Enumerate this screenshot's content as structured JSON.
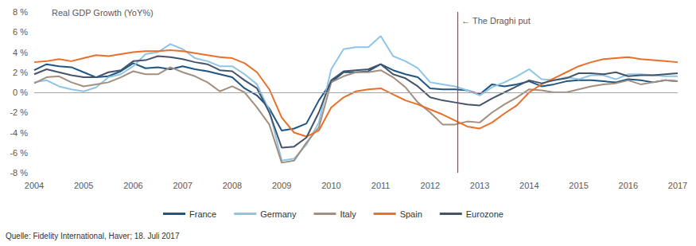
{
  "chart_data": {
    "type": "line",
    "title": "Real GDP Growth (YoY%)",
    "source": "Quelle: Fidelity International, Haver; 18. Juli 2017",
    "x": [
      2004,
      2004.25,
      2004.5,
      2004.75,
      2005,
      2005.25,
      2005.5,
      2005.75,
      2006,
      2006.25,
      2006.5,
      2006.75,
      2007,
      2007.25,
      2007.5,
      2007.75,
      2008,
      2008.25,
      2008.5,
      2008.75,
      2009,
      2009.25,
      2009.5,
      2009.75,
      2010,
      2010.25,
      2010.5,
      2010.75,
      2011,
      2011.25,
      2011.5,
      2011.75,
      2012,
      2012.25,
      2012.5,
      2012.75,
      2013,
      2013.25,
      2013.5,
      2013.75,
      2014,
      2014.25,
      2014.5,
      2014.75,
      2015,
      2015.25,
      2015.5,
      2015.75,
      2016,
      2016.25,
      2016.5,
      2016.75,
      2017
    ],
    "xlim": [
      2004,
      2017
    ],
    "xticks": [
      2004,
      2005,
      2006,
      2007,
      2008,
      2009,
      2010,
      2011,
      2012,
      2013,
      2014,
      2015,
      2016,
      2017
    ],
    "ylim": [
      -8,
      8
    ],
    "yticks": [
      {
        "value": -8,
        "label": "-8 %"
      },
      {
        "value": -6,
        "label": "-6 %"
      },
      {
        "value": -4,
        "label": "-4 %"
      },
      {
        "value": -2,
        "label": "-2 %"
      },
      {
        "value": 0,
        "label": "0 %"
      },
      {
        "value": 2,
        "label": "2 %"
      },
      {
        "value": 4,
        "label": "4 %"
      },
      {
        "value": 6,
        "label": "6 %"
      },
      {
        "value": 8,
        "label": "8 %"
      }
    ],
    "grid": false,
    "legend": "bottom",
    "annotations": [
      {
        "x": 2012.55,
        "text": "← The Draghi put"
      }
    ],
    "series": [
      {
        "name": "France",
        "color": "#1f5582",
        "values": [
          2.2,
          2.8,
          2.6,
          2.5,
          2.0,
          1.5,
          1.6,
          2.1,
          2.9,
          2.4,
          2.5,
          2.3,
          2.6,
          2.3,
          2.1,
          1.8,
          1.5,
          0.4,
          -0.3,
          -1.6,
          -3.8,
          -3.6,
          -3.1,
          -0.8,
          1.0,
          2.0,
          2.0,
          2.1,
          2.8,
          2.2,
          1.8,
          1.5,
          0.4,
          0.3,
          0.3,
          0.2,
          -0.2,
          0.8,
          0.6,
          0.8,
          1.1,
          0.6,
          0.8,
          1.1,
          1.2,
          1.2,
          1.1,
          1.0,
          1.3,
          1.2,
          1.0,
          1.2,
          1.1
        ]
      },
      {
        "name": "Germany",
        "color": "#8ec5e6",
        "values": [
          1.0,
          1.2,
          0.6,
          0.3,
          0.1,
          0.5,
          1.5,
          1.8,
          2.6,
          3.8,
          4.0,
          4.8,
          4.3,
          3.4,
          3.1,
          2.6,
          2.6,
          1.8,
          0.8,
          -1.8,
          -6.8,
          -6.6,
          -5.2,
          -3.0,
          2.3,
          4.3,
          4.5,
          4.5,
          5.6,
          3.6,
          3.1,
          2.4,
          1.0,
          0.8,
          0.6,
          0.2,
          -0.3,
          0.5,
          1.0,
          1.6,
          2.3,
          1.3,
          1.2,
          1.5,
          1.3,
          1.7,
          1.7,
          1.3,
          1.8,
          1.8,
          1.7,
          1.6,
          1.6
        ]
      },
      {
        "name": "Italy",
        "color": "#a38f7f",
        "values": [
          0.9,
          1.5,
          1.6,
          1.0,
          0.6,
          0.8,
          1.0,
          1.5,
          2.1,
          1.8,
          1.8,
          2.5,
          2.0,
          1.6,
          1.0,
          0.1,
          0.6,
          0.0,
          -1.5,
          -3.2,
          -7.0,
          -6.8,
          -5.0,
          -3.5,
          1.0,
          1.6,
          2.0,
          2.0,
          2.2,
          1.5,
          0.5,
          -1.0,
          -2.0,
          -3.2,
          -3.2,
          -2.9,
          -3.0,
          -2.0,
          -1.2,
          -0.5,
          0.3,
          0.2,
          0.0,
          0.0,
          0.3,
          0.6,
          0.8,
          0.9,
          1.2,
          0.8,
          1.0,
          1.2,
          1.1
        ]
      },
      {
        "name": "Spain",
        "color": "#e8702a",
        "values": [
          3.0,
          3.1,
          3.3,
          3.1,
          3.4,
          3.7,
          3.6,
          3.8,
          4.0,
          4.1,
          4.1,
          4.2,
          4.1,
          3.9,
          3.7,
          3.5,
          3.4,
          2.9,
          2.0,
          0.3,
          -2.5,
          -4.0,
          -4.4,
          -3.8,
          -1.5,
          -0.5,
          0.1,
          0.3,
          0.4,
          -0.2,
          -0.8,
          -1.2,
          -1.7,
          -2.2,
          -2.8,
          -3.4,
          -3.6,
          -3.0,
          -2.1,
          -1.3,
          0.0,
          0.8,
          1.4,
          2.0,
          2.6,
          3.0,
          3.3,
          3.4,
          3.5,
          3.3,
          3.2,
          3.1,
          3.0
        ]
      },
      {
        "name": "Eurozone",
        "color": "#46546b",
        "values": [
          1.8,
          2.3,
          2.0,
          1.7,
          1.5,
          1.5,
          2.0,
          2.2,
          3.1,
          3.2,
          3.6,
          3.5,
          3.3,
          3.0,
          2.8,
          2.2,
          2.1,
          1.2,
          0.4,
          -2.0,
          -5.5,
          -5.4,
          -4.5,
          -2.0,
          1.2,
          2.1,
          2.2,
          2.3,
          2.8,
          1.8,
          1.4,
          0.6,
          -0.5,
          -0.8,
          -1.0,
          -1.2,
          -1.3,
          -0.6,
          0.0,
          0.6,
          1.2,
          0.9,
          1.2,
          1.4,
          1.9,
          1.9,
          1.8,
          2.0,
          1.6,
          1.7,
          1.7,
          1.8,
          1.9
        ]
      }
    ]
  }
}
